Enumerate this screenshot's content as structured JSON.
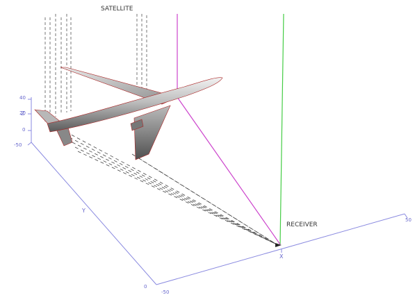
{
  "labels": {
    "satellite": "SATELLITE",
    "receiver": "RECEIVER"
  },
  "axes": {
    "z_name": "Z",
    "y_name": "Y",
    "x_name": "X",
    "z_ticks": [
      "40",
      "20",
      "0"
    ],
    "y_ticks": [
      "-50",
      "0"
    ],
    "x_ticks": [
      "-50",
      "50"
    ]
  },
  "colors": {
    "axis": "#8a8ae0",
    "incident_rays": "#cc44cc",
    "direct_path": "#44cc44",
    "scatter_path": "#cc44cc",
    "ray_dashes": "#555555",
    "aircraft_edge": "#aa2222"
  }
}
